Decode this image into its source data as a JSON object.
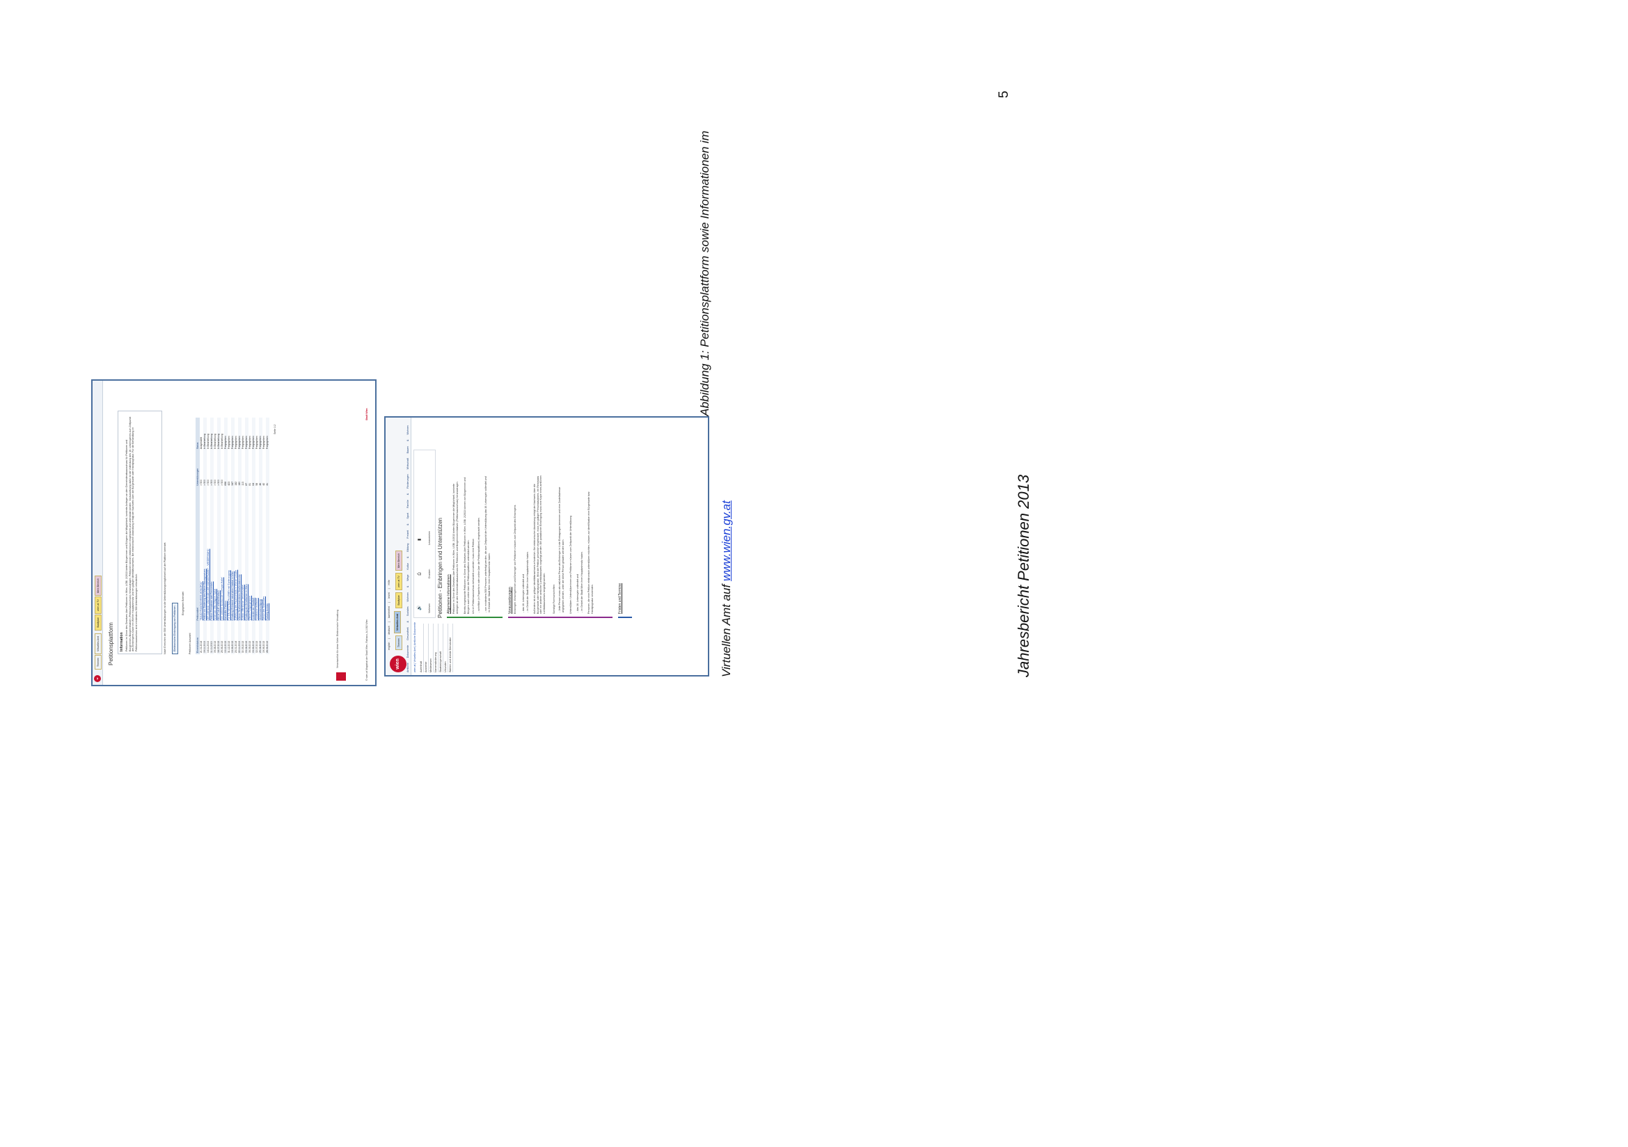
{
  "page": {
    "number": "5",
    "report_title": "Jahresbericht Petitionen 2013",
    "caption_line1": "Abbildung 1: Petitionsplattform sowie Informationen im",
    "caption_line2_prefix": "Virtuellen Amt auf ",
    "caption_link": "www.wien.gv.at"
  },
  "screenshot_a": {
    "tabs": [
      "Themen",
      "Virtuelles Amt",
      "Stadtplan",
      "wien.at TV",
      "Mein Bereich"
    ],
    "tab_colors": [
      "#cfe0f2",
      "#cfe0f2",
      "#f6e27a",
      "#f6e27a",
      "#e6c9d9"
    ],
    "title": "Petitionsplattform",
    "info_heading": "Information",
    "info_text": "Petitionen im Sinne des Gesetzes über Petitionen in Wien, LGBl. 2/2013 bieten Bürgerinnen und Bürgern die Möglichkeit, konkrete Anliegen an den Gemeinderatsausschuss für Petitionen und Bürgerinnen-/Bürgerinitiativen (Petitionsausschuss) heranzutragen. Petitionen können elektronisch eingebracht und unterstützt werden. Voraussetzung dafür ist die Vollendung des 16. Lebensjahres zum Zeitpunkt des Einbringens sowie ein Wiener Hauptwohnsitz und ein gültiger Identitätsnachweis. Bei elektronischer Abwicklung erfolgt der Nachweis über die Bürgerkarte oder Handysignatur. Für die Behandlung im Petitionsausschuss sind mindestens 500 Unterstützungen erforderlich.",
    "info_note": "Nach Erreichen der 500 Unterstützungen ist die Unterstützungsmöglichkeit auf der Plattform beendet.",
    "button_label": "Elektronische Einbringung von Petitionen",
    "filter_label": "Petitionen Auswahl",
    "filter_options": "Eingegeben   Beendet",
    "table_headers": [
      "Einreichdatum",
      "Petitionstitel",
      "Unterstützungen",
      "Status"
    ],
    "rows": [
      [
        "21.01.2014",
        "\"RAUCHFANGKEHRER-MONOPOL\"",
        "> 500",
        "Ausgewählt"
      ],
      [
        "19.11.2013",
        "Petition zur Änderung des Wiener Baumgesetzes",
        "> 500",
        "In Bearbeitung"
      ],
      [
        "14.11.2013",
        "DER ANFANG VOM ENDE DER BÜRGERNÄHE? - WIEDERWAHL!",
        "> 500",
        "In Bearbeitung"
      ],
      [
        "11.11.2013",
        "Petition Fernwärme statt Fernverkehr",
        "> 500",
        "In Bearbeitung"
      ],
      [
        "09.08.2013",
        "Rettet das Otto-Wagner-Spital",
        "> 500",
        "In Bearbeitung"
      ],
      [
        "18.07.2013",
        "RECHT AUF WIENERWALD",
        "> 500",
        "In Bearbeitung"
      ],
      [
        "25.06.2013",
        "Kein weiterer Ausbau der Interspar-Halle!",
        "> 500",
        "In Bearbeitung"
      ],
      [
        "13.12.2013",
        "Mariahilfer Petition",
        "698",
        "Freigegeben"
      ],
      [
        "31.12.2013",
        "Für EIN WESTBAHN-LEBEN mit Gartenzugang",
        "423",
        "Freigegeben"
      ],
      [
        "13.06.2013",
        "Erhaltung Grünland naturnaher Habitat in Wien",
        "347",
        "Freigegeben"
      ],
      [
        "23.01.2014",
        "Aufhebung des Rauchverbots in Wiener Lokalen",
        "182",
        "Freigegeben"
      ],
      [
        "22.11.2013",
        "Wiener Straßenbahnlinien Straßenbahnnetz",
        "180",
        "Freigegeben"
      ],
      [
        "30.05.2013",
        "Ausbau öffentlicher Verkehrsmittel",
        "113",
        "Freigegeben"
      ],
      [
        "03.04.2013",
        "Erhaltung der Grünflächen in Wien",
        "87",
        "Freigegeben"
      ],
      [
        "06.09.2013",
        "Wiener Fußgängerzone",
        "81",
        "Freigegeben"
      ],
      [
        "03.06.2013",
        "Kontrolle der Stadtluft",
        "64",
        "Freigegeben"
      ],
      [
        "02.07.2013",
        "Hundezone im Bezirk",
        "58",
        "Freigegeben"
      ],
      [
        "25.04.2013",
        "Verkehrsberuhigung",
        "46",
        "Freigegeben"
      ],
      [
        "19.06.2013",
        "Schutz des Stadtbildes",
        "42",
        "Freigegeben"
      ],
      [
        "28.06.2013",
        "Radweg Ausbau",
        "41",
        "Freigegeben"
      ]
    ],
    "pager": "Seite 1 2",
    "footer_contact": "Verantwortlich für diese Seite: Elektronische Verwaltung",
    "footer_copyright": "© wien.at Magistrat der Stadt Wien, Rathaus, A-1082 Wien",
    "footer_brand": "Stadt Wien"
  },
  "screenshot_b": {
    "logo_text": "wien",
    "top_links": [
      "english",
      "deutsch",
      "barrierefrei",
      "leicht",
      "Hilfe"
    ],
    "tabs": [
      "Themen",
      "Virtuelles Amt",
      "Stadtplan",
      "wien.at TV",
      "Mein Bereich"
    ],
    "tab_colors": [
      "#cfe0f2",
      "#cfe0f2",
      "#f6e27a",
      "#f6e27a",
      "#e6c9d9"
    ],
    "subnav": [
      "Amtliche Dokumente",
      "Gesundheit & Soziales",
      "Wohnen & Wege",
      "Kultur & Bildung",
      "Freizeit & Sport",
      "Familie & Förderungen",
      "Wirtschaft",
      "Bauen & Wohnen"
    ],
    "breadcrumb": "wien.at | Virtuelles Amt | Amtliche Dokumente",
    "side_menu": [
      "Aufenthalt",
      "Ausweise",
      "Meldewesen",
      "Namensänderung",
      "Staatsbürgerschaft",
      "Urkunden",
      "Wahlen und direkte Demokratie"
    ],
    "icon_labels": [
      "Vorlesen",
      "Drucken",
      "Lesezeichen"
    ],
    "title": "Petitionen - Einbringen und Unterstützen",
    "section1": "Allgemeine Informationen",
    "section1_text": "Petitionen im Sinne des Gesetzes über Petitionen in Wien, LGBl. 2/2013 bieten Bürgerinnen die Möglichkeit, konkrete Anliegen an den Gemeinderatsausschuss für Petitionen und Bürgerinneninitiativen (Petitionsausschuss) heranzutragen.",
    "section1_text2": "Bereits eingebrachte Petitionen im Sinne des Gesetzes über Petitionen in Wien, LGBl. 2/2013 können von Bürgerinnen und Bürgern auch online über die Petitionsplattform unterstützt werden.",
    "section1_text3": "Um im Petitionsausschuss behandelt zu werden, muss eine Petition",
    "bullets1": [
      "schriftlich (in Papierform oder online über die Petitionsplattform) eingebracht werden.",
      "von mindestens 500 Personen unterfertigt werden, die zum Zeitpunkt der Unterstützung das 16. Lebensjahr vollendet und im Gebiet der Stadt Wien ihren Hauptwohnsitz haben."
    ],
    "section2": "Voraussetzungen",
    "section2_text": "Einbringen: Einbringerinnen und Einbringer von Petitionen müssen zum Zeitpunkt des Einbringens",
    "bullets2": [
      "das 16. Lebensjahr vollendet und",
      "im Gebiet der Stadt Wien ihren Hauptwohnsitz haben."
    ],
    "section2_text2": "Außerdem ist ein gültiger Identitätsnachweis erforderlich. Bei elektronischer Abwicklung erfolgt der Nachweis über die Bürgerkarte oder Handysignatur. Wird die Petition persönlich eingebracht, muss ein gültiger Personalausweis, ein Reisepass oder ein anderer amtlicher Lichtbildausweis vorgelegt werden. Bei postalischer Einbringung muss eine Kopie eines amtlichen Lichtbildausweises beigelegt werden.",
    "section2_text3": "Sonstige Formvorschriften:",
    "bullets3": [
      "Jede Person muss als natürliche Person als Einbringer in Liste Eintragungen benennen und eine Zustelladresse angegeben werden, unter der diese Person geladen werden kann."
    ],
    "section2_text4": "Unterstützen: Unterstützerinnen von Petitionen müssen zum Zeitpunkt der Unterstützung",
    "bullets4": [
      "das 16. Lebensjahr vollendet und",
      "im Gebiet der Stadt Wien ihren Hauptwohnsitz haben."
    ],
    "section2_text5": "Personen, die eine Petition elektronisch unterstützen möchten, müssen zur Identifikation eine Bürgerkarte bzw. Handysignatur verwenden.",
    "section3": "Fristen und Termine"
  }
}
